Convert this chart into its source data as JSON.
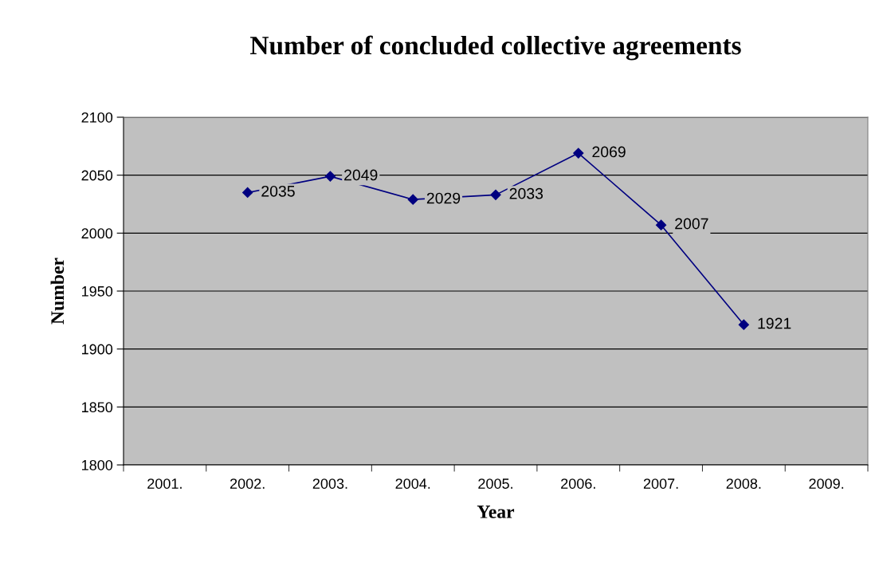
{
  "chart_data": {
    "type": "line",
    "title": "Number of concluded collective agreements",
    "xlabel": "Year",
    "ylabel": "Number",
    "categories": [
      "2001.",
      "2002.",
      "2003.",
      "2004.",
      "2005.",
      "2006.",
      "2007.",
      "2008.",
      "2009."
    ],
    "series": [
      {
        "color": "#000080",
        "values": [
          null,
          2035,
          2049,
          2029,
          2033,
          2069,
          2007,
          1921,
          null
        ]
      }
    ],
    "ylim": [
      1800,
      2100
    ],
    "yticks": [
      1800,
      1850,
      1900,
      1950,
      2000,
      2050,
      2100
    ],
    "grid": "y",
    "marker": "diamond",
    "line_style": "solid",
    "data_labels": true,
    "legend": false
  }
}
